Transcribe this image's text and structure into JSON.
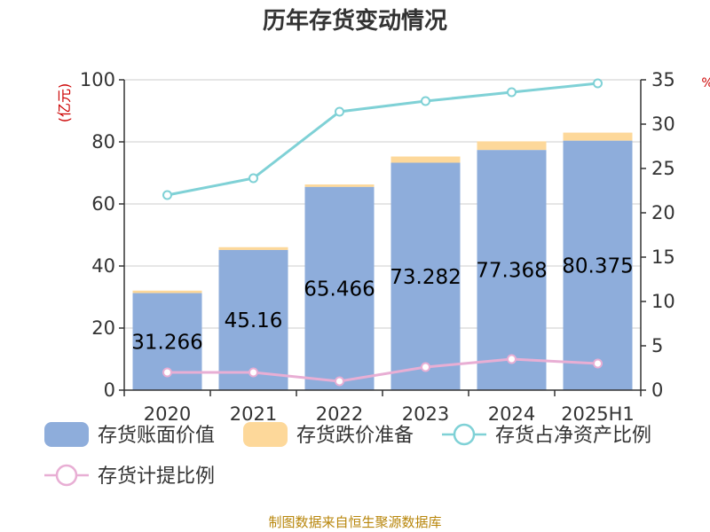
{
  "chart_data": {
    "type": "bar",
    "title": "历年存货变动情况",
    "categories": [
      "2020",
      "2021",
      "2022",
      "2023",
      "2024",
      "2025H1"
    ],
    "y_left": {
      "unit": "(亿元)",
      "ylim": [
        0,
        100
      ],
      "ticks": [
        0,
        20,
        40,
        60,
        80,
        100
      ]
    },
    "y_right": {
      "unit": "%",
      "ylim": [
        0,
        35
      ],
      "ticks": [
        0,
        5,
        10,
        15,
        20,
        25,
        30,
        35
      ]
    },
    "grid": true,
    "legend_position": "bottom",
    "series": [
      {
        "name": "存货账面价值",
        "type": "bar",
        "axis": "left",
        "color": "#8EADDB",
        "values": [
          31.266,
          45.16,
          65.466,
          73.282,
          77.368,
          80.375
        ],
        "labels": [
          "31.266",
          "45.16",
          "65.466",
          "73.282",
          "77.368",
          "80.375"
        ]
      },
      {
        "name": "存货跌价准备",
        "type": "bar-stacked",
        "axis": "left",
        "color": "#FDD89A",
        "values": [
          0.8,
          0.9,
          0.8,
          2.0,
          2.8,
          2.6
        ]
      },
      {
        "name": "存货占净资产比例",
        "type": "line",
        "axis": "right",
        "color": "#7FD1D6",
        "values": [
          22.0,
          23.9,
          31.4,
          32.6,
          33.6,
          34.6
        ]
      },
      {
        "name": "存货计提比例",
        "type": "line",
        "axis": "right",
        "color": "#E8AED4",
        "values": [
          2.0,
          2.0,
          1.0,
          2.6,
          3.5,
          3.0
        ]
      }
    ]
  },
  "source": "制图数据来自恒生聚源数据库"
}
